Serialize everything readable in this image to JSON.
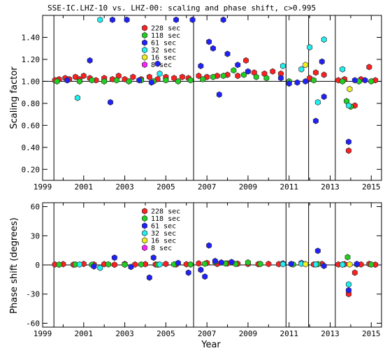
{
  "colors": {
    "s228": "#ff2020",
    "s118": "#20d020",
    "s61": "#2020ff",
    "s32": "#20f0f0",
    "s16": "#f0f020",
    "s8": "#ff20ff",
    "outline": "#303030",
    "axis": "#000000"
  },
  "chart_data": [
    {
      "type": "scatter",
      "title": "SSE-IC.LHZ-10 vs. LHZ-00: scaling and phase shift, c>0.995",
      "ylabel": "Scaling factor",
      "xlabel": "",
      "xlim": [
        1999.0,
        2015.5
      ],
      "ylim": [
        0.1,
        1.6
      ],
      "xticks": [
        "1999",
        "2001",
        "2003",
        "2005",
        "2007",
        "2009",
        "2011",
        "2013",
        "2015"
      ],
      "yticks": [
        "0.20",
        "0.40",
        "0.60",
        "0.80",
        "1.00",
        "1.20",
        "1.40"
      ],
      "vlines": [
        1999.55,
        2006.35,
        2010.85,
        2011.95,
        2013.25
      ],
      "legend_position": "top-center",
      "series": [
        {
          "name": "228 sec",
          "color": "s228",
          "points": [
            [
              1999.6,
              1.01
            ],
            [
              1999.8,
              1.02
            ],
            [
              2000.1,
              1.03
            ],
            [
              2000.3,
              1.02
            ],
            [
              2000.6,
              1.04
            ],
            [
              2000.8,
              1.02
            ],
            [
              2001.0,
              1.05
            ],
            [
              2001.3,
              1.03
            ],
            [
              2001.6,
              1.01
            ],
            [
              2002.0,
              1.03
            ],
            [
              2002.4,
              1.02
            ],
            [
              2002.7,
              1.05
            ],
            [
              2003.0,
              1.02
            ],
            [
              2003.4,
              1.04
            ],
            [
              2003.8,
              1.02
            ],
            [
              2004.2,
              1.04
            ],
            [
              2004.6,
              1.02
            ],
            [
              2005.0,
              1.04
            ],
            [
              2005.4,
              1.03
            ],
            [
              2005.8,
              1.04
            ],
            [
              2006.1,
              1.03
            ],
            [
              2006.6,
              1.05
            ],
            [
              2007.0,
              1.04
            ],
            [
              2007.5,
              1.05
            ],
            [
              2008.0,
              1.06
            ],
            [
              2008.5,
              1.05
            ],
            [
              2008.9,
              1.19
            ],
            [
              2009.3,
              1.08
            ],
            [
              2009.8,
              1.07
            ],
            [
              2010.2,
              1.09
            ],
            [
              2010.6,
              1.07
            ],
            [
              2012.0,
              1.03
            ],
            [
              2012.3,
              1.08
            ],
            [
              2012.7,
              1.06
            ],
            [
              2013.4,
              1.01
            ],
            [
              2013.7,
              1.02
            ],
            [
              2013.9,
              0.37
            ],
            [
              2014.2,
              0.78
            ],
            [
              2014.5,
              1.02
            ],
            [
              2014.9,
              1.13
            ],
            [
              2015.2,
              1.01
            ]
          ]
        },
        {
          "name": "118 sec",
          "color": "s118",
          "points": [
            [
              1999.7,
              1.0
            ],
            [
              2000.2,
              1.01
            ],
            [
              2000.8,
              1.0
            ],
            [
              2001.4,
              1.01
            ],
            [
              2002.0,
              1.0
            ],
            [
              2002.6,
              1.01
            ],
            [
              2003.2,
              1.0
            ],
            [
              2003.8,
              1.01
            ],
            [
              2004.4,
              1.0
            ],
            [
              2005.0,
              1.01
            ],
            [
              2005.6,
              1.0
            ],
            [
              2006.2,
              1.01
            ],
            [
              2006.8,
              1.02
            ],
            [
              2007.3,
              1.04
            ],
            [
              2007.8,
              1.05
            ],
            [
              2008.3,
              1.1
            ],
            [
              2008.8,
              1.06
            ],
            [
              2009.4,
              1.04
            ],
            [
              2009.9,
              1.03
            ],
            [
              2011.0,
              1.0
            ],
            [
              2012.2,
              1.01
            ],
            [
              2013.6,
              1.0
            ],
            [
              2013.8,
              0.82
            ],
            [
              2014.0,
              0.77
            ],
            [
              2014.4,
              1.0
            ],
            [
              2015.0,
              1.0
            ]
          ]
        },
        {
          "name": "61 sec",
          "color": "s61",
          "points": [
            [
              2000.2,
              1.01
            ],
            [
              2001.3,
              1.19
            ],
            [
              2002.3,
              0.81
            ],
            [
              2002.4,
              1.56
            ],
            [
              2003.1,
              1.56
            ],
            [
              2003.7,
              1.01
            ],
            [
              2004.3,
              0.99
            ],
            [
              2004.6,
              1.16
            ],
            [
              2005.5,
              1.56
            ],
            [
              2006.3,
              1.56
            ],
            [
              2006.7,
              1.14
            ],
            [
              2007.1,
              1.36
            ],
            [
              2007.3,
              1.3
            ],
            [
              2007.6,
              0.88
            ],
            [
              2007.8,
              1.56
            ],
            [
              2008.0,
              1.25
            ],
            [
              2008.5,
              1.15
            ],
            [
              2009.0,
              1.09
            ],
            [
              2010.6,
              1.03
            ],
            [
              2011.0,
              0.98
            ],
            [
              2011.4,
              0.99
            ],
            [
              2011.8,
              1.0
            ],
            [
              2012.3,
              0.64
            ],
            [
              2012.6,
              1.18
            ],
            [
              2012.7,
              0.86
            ],
            [
              2013.9,
              0.45
            ],
            [
              2014.2,
              1.01
            ],
            [
              2014.7,
              1.01
            ]
          ]
        },
        {
          "name": "32 sec",
          "color": "s32",
          "points": [
            [
              2000.7,
              0.85
            ],
            [
              2001.8,
              1.56
            ],
            [
              2004.7,
              1.07
            ],
            [
              2010.7,
              1.14
            ],
            [
              2011.6,
              1.11
            ],
            [
              2012.0,
              1.31
            ],
            [
              2012.4,
              0.81
            ],
            [
              2012.7,
              1.38
            ],
            [
              2013.6,
              1.11
            ],
            [
              2013.9,
              0.78
            ]
          ]
        },
        {
          "name": "16 sec",
          "color": "s16",
          "points": [
            [
              2011.8,
              1.15
            ],
            [
              2013.95,
              0.93
            ]
          ]
        },
        {
          "name": "8 sec",
          "color": "s8",
          "points": []
        }
      ]
    },
    {
      "type": "scatter",
      "title": "",
      "ylabel": "Phase shift (degrees)",
      "xlabel": "Year",
      "xlim": [
        1999.0,
        2015.5
      ],
      "ylim": [
        -64,
        64
      ],
      "xticks": [
        "1999",
        "2001",
        "2003",
        "2005",
        "2007",
        "2009",
        "2011",
        "2013",
        "2015"
      ],
      "yticks": [
        "60",
        "30",
        "0",
        "-30",
        "-60"
      ],
      "vlines": [
        1999.55,
        2006.35,
        2010.85,
        2011.95,
        2013.25
      ],
      "legend_position": "top-center",
      "series": [
        {
          "name": "228 sec",
          "color": "s228",
          "points": [
            [
              1999.6,
              0.5
            ],
            [
              2000.0,
              0.8
            ],
            [
              2000.5,
              0.3
            ],
            [
              2001.0,
              1.0
            ],
            [
              2001.5,
              0.5
            ],
            [
              2002.0,
              0.8
            ],
            [
              2002.5,
              0.2
            ],
            [
              2003.0,
              1.0
            ],
            [
              2003.5,
              0.4
            ],
            [
              2004.0,
              0.8
            ],
            [
              2004.5,
              0.5
            ],
            [
              2005.0,
              1.0
            ],
            [
              2005.5,
              0.5
            ],
            [
              2006.0,
              0.7
            ],
            [
              2006.6,
              1.5
            ],
            [
              2007.0,
              2.0
            ],
            [
              2007.5,
              1.0
            ],
            [
              2008.0,
              1.5
            ],
            [
              2008.5,
              1.2
            ],
            [
              2009.0,
              1.0
            ],
            [
              2009.5,
              0.8
            ],
            [
              2010.0,
              1.0
            ],
            [
              2010.5,
              0.8
            ],
            [
              2012.2,
              0.5
            ],
            [
              2012.6,
              1.0
            ],
            [
              2013.4,
              0.5
            ],
            [
              2013.7,
              0.8
            ],
            [
              2013.9,
              -30.0
            ],
            [
              2014.2,
              -8.0
            ],
            [
              2014.5,
              0.5
            ],
            [
              2014.9,
              1.0
            ],
            [
              2015.2,
              0.3
            ]
          ]
        },
        {
          "name": "118 sec",
          "color": "s118",
          "points": [
            [
              1999.8,
              0.3
            ],
            [
              2000.6,
              0.5
            ],
            [
              2001.4,
              0.2
            ],
            [
              2002.2,
              0.6
            ],
            [
              2003.0,
              0.3
            ],
            [
              2003.8,
              0.5
            ],
            [
              2004.6,
              0.2
            ],
            [
              2005.4,
              0.6
            ],
            [
              2006.2,
              0.4
            ],
            [
              2006.9,
              1.2
            ],
            [
              2007.4,
              3.0
            ],
            [
              2007.9,
              1.5
            ],
            [
              2008.4,
              1.0
            ],
            [
              2009.0,
              2.5
            ],
            [
              2009.6,
              1.0
            ],
            [
              2011.2,
              0.5
            ],
            [
              2012.4,
              0.8
            ],
            [
              2013.6,
              0.5
            ],
            [
              2013.85,
              8.0
            ],
            [
              2014.3,
              0.5
            ],
            [
              2015.0,
              0.4
            ]
          ]
        },
        {
          "name": "61 sec",
          "color": "s61",
          "points": [
            [
              2001.5,
              -1.5
            ],
            [
              2002.5,
              7.5
            ],
            [
              2003.3,
              -2.0
            ],
            [
              2004.2,
              -13.0
            ],
            [
              2004.4,
              7.5
            ],
            [
              2005.6,
              2.0
            ],
            [
              2006.1,
              -8.0
            ],
            [
              2006.7,
              -5.0
            ],
            [
              2006.9,
              -12.0
            ],
            [
              2007.1,
              20.0
            ],
            [
              2007.4,
              4.0
            ],
            [
              2007.7,
              2.5
            ],
            [
              2008.2,
              3.0
            ],
            [
              2010.7,
              1.5
            ],
            [
              2011.1,
              1.0
            ],
            [
              2011.6,
              2.0
            ],
            [
              2012.4,
              14.5
            ],
            [
              2012.7,
              -1.0
            ],
            [
              2013.9,
              -26.0
            ],
            [
              2014.3,
              1.0
            ]
          ]
        },
        {
          "name": "32 sec",
          "color": "s32",
          "points": [
            [
              2000.8,
              0.5
            ],
            [
              2001.8,
              -3.0
            ],
            [
              2004.7,
              0.5
            ],
            [
              2010.7,
              0.8
            ],
            [
              2011.6,
              1.2
            ],
            [
              2012.3,
              0.5
            ],
            [
              2013.6,
              0.3
            ],
            [
              2013.9,
              -20.0
            ]
          ]
        },
        {
          "name": "16 sec",
          "color": "s16",
          "points": [
            [
              2011.8,
              0.8
            ],
            [
              2013.95,
              0.5
            ]
          ]
        },
        {
          "name": "8 sec",
          "color": "s8",
          "points": []
        }
      ]
    }
  ]
}
